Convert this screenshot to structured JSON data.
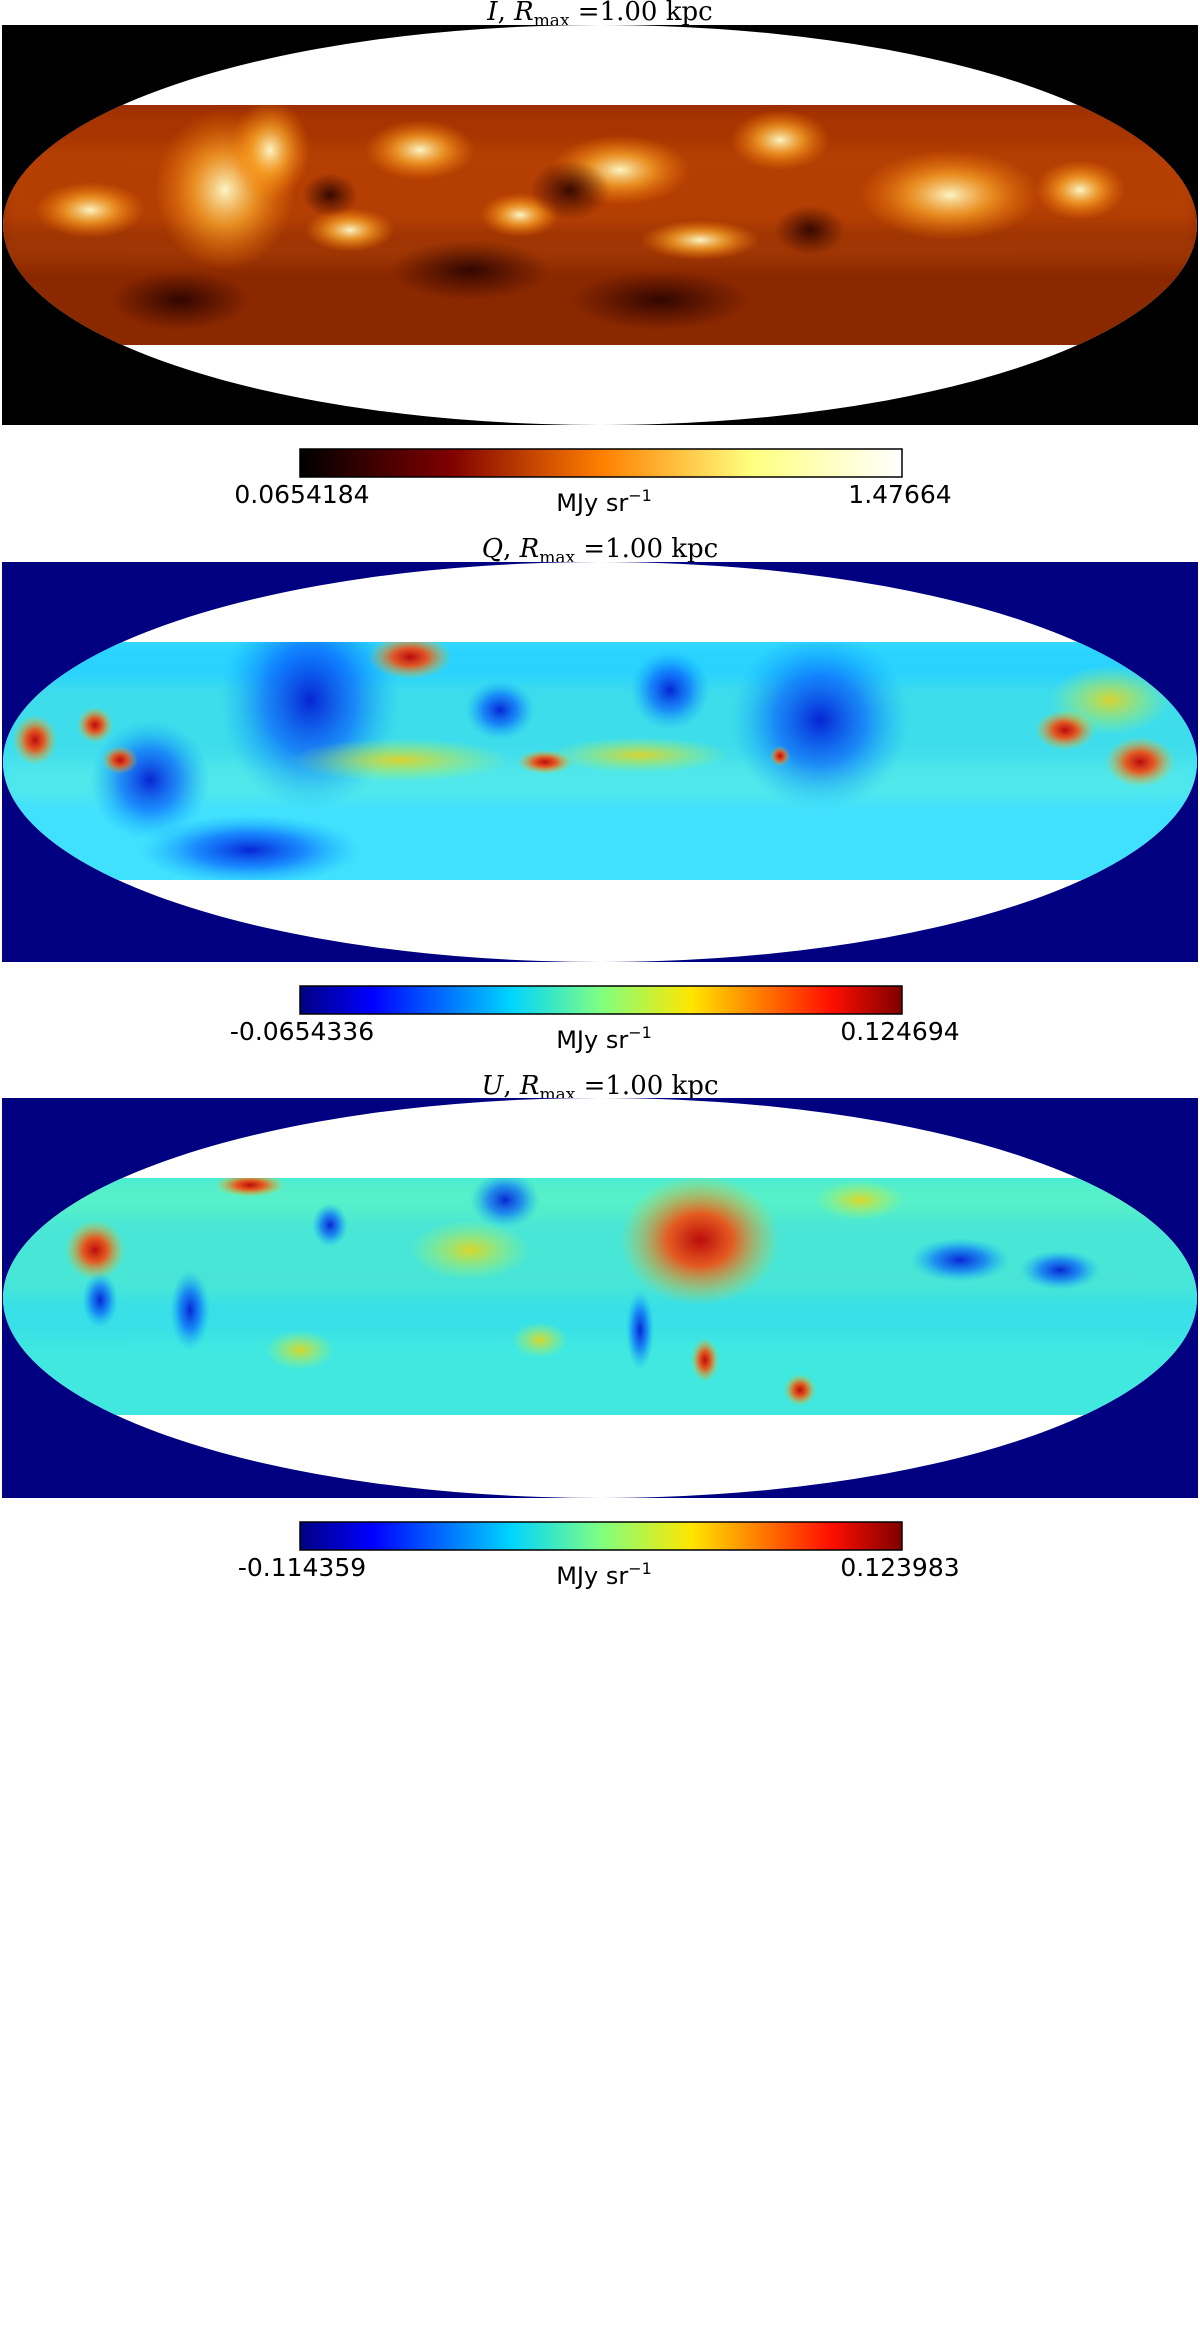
{
  "chart_data": [
    {
      "type": "heatmap",
      "projection": "mollweide",
      "title": {
        "var": "I",
        "sep": ", ",
        "r": "R",
        "sub": "max",
        "eq": " =1.00 kpc"
      },
      "colormap": "afmhot",
      "background_color": "#000000",
      "colorbar": {
        "min": "0.0654184",
        "max": "1.47664",
        "unit": "MJy sr",
        "unit_exp": "−1"
      }
    },
    {
      "type": "heatmap",
      "projection": "mollweide",
      "title": {
        "var": "Q",
        "sep": ", ",
        "r": "R",
        "sub": "max",
        "eq": " =1.00 kpc"
      },
      "colormap": "jet",
      "background_color": "#000080",
      "colorbar": {
        "min": "-0.0654336",
        "max": "0.124694",
        "unit": "MJy sr",
        "unit_exp": "−1"
      }
    },
    {
      "type": "heatmap",
      "projection": "mollweide",
      "title": {
        "var": "U",
        "sep": ", ",
        "r": "R",
        "sub": "max",
        "eq": " =1.00 kpc"
      },
      "colormap": "jet",
      "background_color": "#000080",
      "colorbar": {
        "min": "-0.114359",
        "max": "0.123983",
        "unit": "MJy sr",
        "unit_exp": "−1"
      }
    }
  ]
}
